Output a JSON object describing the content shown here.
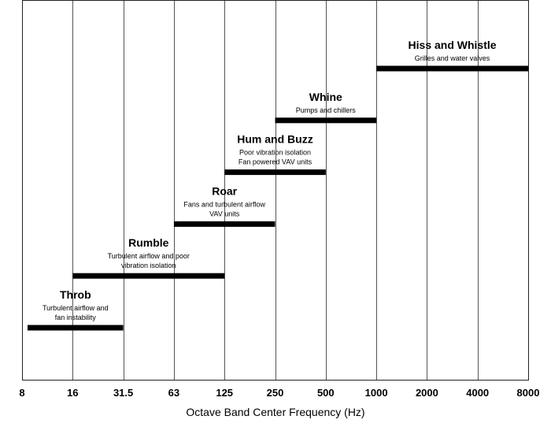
{
  "chart_data": {
    "type": "bar",
    "orientation": "horizontal-range",
    "xlabel": "Octave Band Center Frequency (Hz)",
    "x_ticks": [
      "8",
      "16",
      "31.5",
      "63",
      "125",
      "250",
      "500",
      "1000",
      "2000",
      "4000",
      "8000"
    ],
    "x_scale": "log2",
    "xlim": [
      8,
      8000
    ],
    "grid": true,
    "series": [
      {
        "name": "Throb",
        "description": [
          "Turbulent airflow and",
          "fan instability"
        ],
        "start": 8,
        "end": 31.5
      },
      {
        "name": "Rumble",
        "description": [
          "Turbulent airflow and poor",
          "vibration isolation"
        ],
        "start": 16,
        "end": 125
      },
      {
        "name": "Roar",
        "description": [
          "Fans and turbulent airflow",
          "VAV units"
        ],
        "start": 63,
        "end": 250
      },
      {
        "name": "Hum and Buzz",
        "description": [
          "Poor vibration isolation",
          "Fan powered VAV units"
        ],
        "start": 125,
        "end": 500
      },
      {
        "name": "Whine",
        "description": [
          "Pumps and chillers"
        ],
        "start": 250,
        "end": 1000
      },
      {
        "name": "Hiss and Whistle",
        "description": [
          "Grilles and water valves"
        ],
        "start": 1000,
        "end": 8000
      }
    ]
  }
}
